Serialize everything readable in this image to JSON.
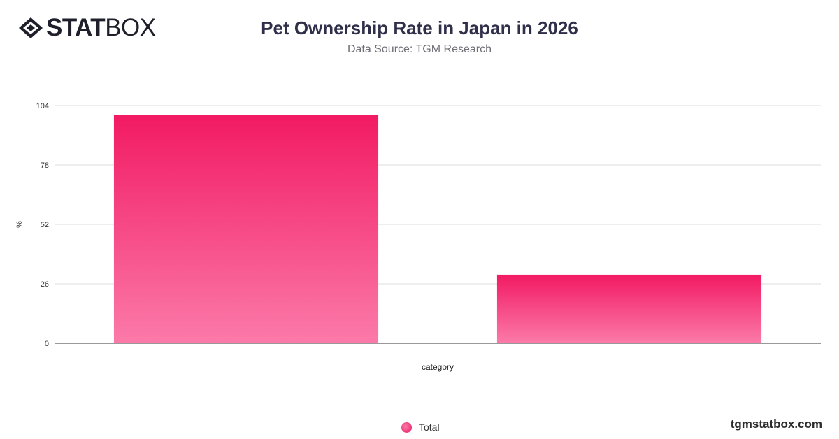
{
  "brand": {
    "logo_bold": "STAT",
    "logo_light": "BOX",
    "icon": "statbox-diamond-icon",
    "website": "tgmstatbox.com"
  },
  "header": {
    "title": "Pet Ownership Rate in Japan in 2026",
    "subtitle": "Data Source: TGM Research"
  },
  "legend": {
    "label": "Total"
  },
  "colors": {
    "bar_top": "#f21a63",
    "bar_bottom": "#fb7aa9",
    "grid": "#dddddd",
    "axis": "#333333"
  },
  "chart_data": {
    "type": "bar",
    "title": "Pet Ownership Rate in Japan in 2026",
    "subtitle": "Data Source: TGM Research",
    "xlabel": "category",
    "ylabel": "%",
    "categories": [
      "",
      ""
    ],
    "series": [
      {
        "name": "Total",
        "values": [
          100,
          30
        ]
      }
    ],
    "yticks": [
      0,
      26,
      52,
      78,
      104
    ],
    "ylim": [
      0,
      104
    ],
    "grid": true,
    "legend_position": "bottom-center"
  }
}
